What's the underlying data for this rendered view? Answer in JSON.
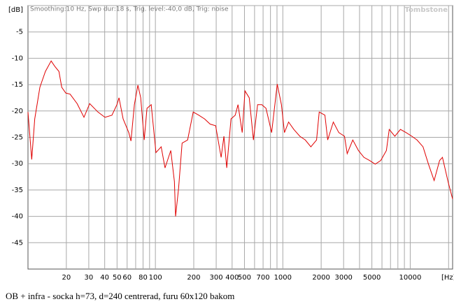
{
  "chart_data": {
    "type": "line",
    "header": "Smoothing:10 Hz, Swp dur:18 s, Trig. level:-40,0 dB, Trig: noise",
    "watermark": "Tombstone",
    "caption": "OB + infra - socka h=73, d=240 centrerad, furu 60x120 bakom",
    "xscale": "log",
    "xlim": [
      10,
      21500
    ],
    "ylim": [
      -50,
      0
    ],
    "xticks": [
      20,
      30,
      40,
      50,
      60,
      80,
      100,
      200,
      300,
      400,
      500,
      700,
      1000,
      2000,
      3000,
      5000,
      10000,
      {
        "value": 20000,
        "label": "[Hz]"
      }
    ],
    "xminor": [
      70,
      90,
      600,
      800,
      900,
      4000,
      6000,
      7000,
      8000,
      9000
    ],
    "yticks": [
      {
        "value": 0,
        "label": "[dB]"
      },
      -5,
      -10,
      -15,
      -20,
      -25,
      -30,
      -35,
      -40,
      -45
    ],
    "grid": true,
    "series": [
      {
        "color": "#e00000",
        "x": [
          10,
          10.7,
          11.3,
          12.4,
          13.7,
          15.2,
          16.2,
          17.5,
          18.4,
          19.8,
          21.4,
          24.3,
          27.5,
          30.5,
          35.4,
          40.2,
          45.6,
          49.9,
          51.8,
          55.8,
          61.8,
          64.3,
          68.4,
          72.9,
          76.7,
          81.7,
          85.9,
          92.7,
          101,
          111,
          119,
          132,
          141,
          144,
          152,
          162,
          179,
          198,
          219,
          243,
          269,
          297,
          328,
          345,
          363,
          392,
          423,
          445,
          480,
          505,
          545,
          588,
          634,
          684,
          738,
          817,
          904,
          975,
          1030,
          1110,
          1220,
          1360,
          1500,
          1660,
          1840,
          1930,
          2140,
          2250,
          2490,
          2750,
          3050,
          3200,
          3540,
          3920,
          4330,
          4800,
          5310,
          5870,
          6500,
          6840,
          7570,
          8380,
          9270,
          10300,
          11300,
          12600,
          13900,
          15400,
          17000,
          17900,
          19800,
          21500
        ],
        "values": [
          -20.2,
          -29.2,
          -21.5,
          -15.5,
          -12.5,
          -10.5,
          -11.5,
          -12.5,
          -15.5,
          -16.6,
          -16.8,
          -18.6,
          -21.2,
          -18.6,
          -20.2,
          -21.2,
          -20.8,
          -18.8,
          -17.5,
          -21.5,
          -24.1,
          -25.7,
          -18.8,
          -15.1,
          -17.5,
          -25.5,
          -19.5,
          -18.8,
          -27.9,
          -26.8,
          -30.8,
          -27.5,
          -33.4,
          -40,
          -34.7,
          -26.1,
          -25.5,
          -20.2,
          -20.8,
          -21.5,
          -22.5,
          -22.8,
          -28.8,
          -24.8,
          -30.8,
          -21.5,
          -20.8,
          -18.8,
          -24.1,
          -16.2,
          -17.5,
          -25.5,
          -18.8,
          -18.8,
          -19.5,
          -24.1,
          -14.9,
          -18.8,
          -24.1,
          -22.1,
          -23.5,
          -24.8,
          -25.5,
          -26.8,
          -25.5,
          -20.2,
          -20.8,
          -25.5,
          -22.1,
          -24.1,
          -24.8,
          -28.1,
          -25.5,
          -27.5,
          -28.8,
          -29.4,
          -30.1,
          -29.4,
          -27.5,
          -23.5,
          -24.8,
          -23.5,
          -24.1,
          -24.8,
          -25.5,
          -26.8,
          -30.1,
          -33.2,
          -29.4,
          -28.8,
          -33.4,
          -36.7
        ]
      }
    ]
  }
}
